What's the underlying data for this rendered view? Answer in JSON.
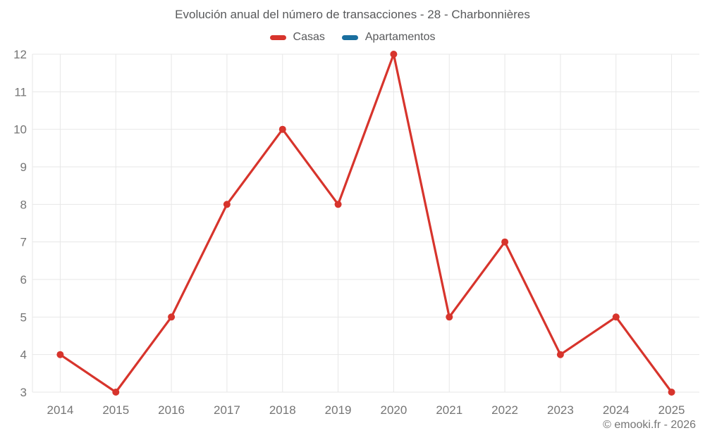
{
  "title": "Evolución anual del número de transacciones - 28 - Charbonnières",
  "footer": "© emooki.fr - 2026",
  "legend": [
    {
      "id": "casas",
      "label": "Casas",
      "color": "#d7342c"
    },
    {
      "id": "apartamentos",
      "label": "Apartamentos",
      "color": "#1a6f9f"
    }
  ],
  "colors": {
    "background": "#ffffff",
    "grid": "#e7e7e7",
    "axis_text": "#757575",
    "title_text": "#58595b",
    "casas": "#d7342c",
    "apartamentos": "#1a6f9f"
  },
  "chart_data": {
    "type": "line",
    "title": "Evolución anual del número de transacciones - 28 - Charbonnières",
    "categories": [
      "2014",
      "2015",
      "2016",
      "2017",
      "2018",
      "2019",
      "2020",
      "2021",
      "2022",
      "2023",
      "2024",
      "2025"
    ],
    "series": [
      {
        "name": "Casas",
        "color": "#d7342c",
        "values": [
          4,
          3,
          5,
          8,
          10,
          8,
          12,
          5,
          7,
          4,
          5,
          3
        ]
      },
      {
        "name": "Apartamentos",
        "color": "#1a6f9f",
        "values": []
      }
    ],
    "xlabel": "",
    "ylabel": "",
    "ylim": [
      3,
      12
    ],
    "y_ticks": [
      3,
      4,
      5,
      6,
      7,
      8,
      9,
      10,
      11,
      12
    ],
    "grid": true,
    "legend_position": "top"
  }
}
